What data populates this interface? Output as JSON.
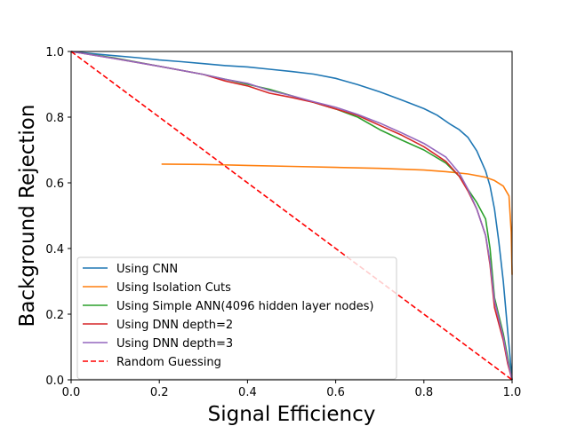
{
  "chart_data": {
    "type": "line",
    "title": "",
    "xlabel": "Signal Efficiency",
    "ylabel": "Background Rejection",
    "xlim": [
      0.0,
      1.0
    ],
    "ylim": [
      0.0,
      1.0
    ],
    "x_ticks": [
      "0.0",
      "0.2",
      "0.4",
      "0.6",
      "0.8",
      "1.0"
    ],
    "y_ticks": [
      "0.0",
      "0.2",
      "0.4",
      "0.6",
      "0.8",
      "1.0"
    ],
    "grid": false,
    "legend_position": "lower-left",
    "series": [
      {
        "name": "Using CNN",
        "color": "#1f77b4",
        "style": "solid",
        "points": [
          [
            0.0,
            1.0
          ],
          [
            0.05,
            0.993
          ],
          [
            0.1,
            0.987
          ],
          [
            0.15,
            0.981
          ],
          [
            0.2,
            0.974
          ],
          [
            0.25,
            0.969
          ],
          [
            0.3,
            0.963
          ],
          [
            0.35,
            0.957
          ],
          [
            0.4,
            0.953
          ],
          [
            0.45,
            0.946
          ],
          [
            0.5,
            0.939
          ],
          [
            0.55,
            0.931
          ],
          [
            0.6,
            0.918
          ],
          [
            0.65,
            0.899
          ],
          [
            0.7,
            0.877
          ],
          [
            0.75,
            0.852
          ],
          [
            0.8,
            0.826
          ],
          [
            0.83,
            0.806
          ],
          [
            0.86,
            0.778
          ],
          [
            0.88,
            0.762
          ],
          [
            0.9,
            0.738
          ],
          [
            0.92,
            0.697
          ],
          [
            0.94,
            0.636
          ],
          [
            0.95,
            0.59
          ],
          [
            0.96,
            0.52
          ],
          [
            0.97,
            0.42
          ],
          [
            0.98,
            0.3
          ],
          [
            0.99,
            0.15
          ],
          [
            1.0,
            0.0
          ]
        ]
      },
      {
        "name": "Using Isolation Cuts",
        "color": "#ff7f0e",
        "style": "solid",
        "points": [
          [
            0.205,
            0.657
          ],
          [
            0.3,
            0.656
          ],
          [
            0.4,
            0.653
          ],
          [
            0.5,
            0.65
          ],
          [
            0.6,
            0.647
          ],
          [
            0.7,
            0.644
          ],
          [
            0.8,
            0.639
          ],
          [
            0.85,
            0.634
          ],
          [
            0.9,
            0.627
          ],
          [
            0.94,
            0.617
          ],
          [
            0.96,
            0.607
          ],
          [
            0.98,
            0.59
          ],
          [
            0.993,
            0.56
          ],
          [
            0.998,
            0.45
          ],
          [
            1.0,
            0.32
          ]
        ]
      },
      {
        "name": "Using Simple ANN(4096 hidden layer nodes)",
        "color": "#2ca02c",
        "style": "solid",
        "points": [
          [
            0.0,
            1.0
          ],
          [
            0.1,
            0.98
          ],
          [
            0.2,
            0.955
          ],
          [
            0.3,
            0.93
          ],
          [
            0.35,
            0.915
          ],
          [
            0.4,
            0.9
          ],
          [
            0.45,
            0.885
          ],
          [
            0.5,
            0.865
          ],
          [
            0.55,
            0.845
          ],
          [
            0.6,
            0.825
          ],
          [
            0.65,
            0.8
          ],
          [
            0.7,
            0.762
          ],
          [
            0.75,
            0.73
          ],
          [
            0.8,
            0.7
          ],
          [
            0.85,
            0.66
          ],
          [
            0.88,
            0.62
          ],
          [
            0.9,
            0.58
          ],
          [
            0.92,
            0.54
          ],
          [
            0.94,
            0.49
          ],
          [
            0.95,
            0.4
          ],
          [
            0.96,
            0.25
          ],
          [
            0.98,
            0.14
          ],
          [
            0.99,
            0.07
          ],
          [
            1.0,
            0.0
          ]
        ]
      },
      {
        "name": "Using DNN depth=2",
        "color": "#d62728",
        "style": "solid",
        "points": [
          [
            0.0,
            1.0
          ],
          [
            0.1,
            0.978
          ],
          [
            0.2,
            0.955
          ],
          [
            0.3,
            0.93
          ],
          [
            0.35,
            0.91
          ],
          [
            0.4,
            0.895
          ],
          [
            0.45,
            0.873
          ],
          [
            0.5,
            0.86
          ],
          [
            0.55,
            0.845
          ],
          [
            0.6,
            0.825
          ],
          [
            0.65,
            0.805
          ],
          [
            0.7,
            0.775
          ],
          [
            0.75,
            0.745
          ],
          [
            0.8,
            0.71
          ],
          [
            0.85,
            0.665
          ],
          [
            0.88,
            0.62
          ],
          [
            0.9,
            0.575
          ],
          [
            0.92,
            0.52
          ],
          [
            0.94,
            0.44
          ],
          [
            0.95,
            0.35
          ],
          [
            0.96,
            0.22
          ],
          [
            0.98,
            0.12
          ],
          [
            0.99,
            0.05
          ],
          [
            1.0,
            0.0
          ]
        ]
      },
      {
        "name": "Using DNN depth=3",
        "color": "#9467bd",
        "style": "solid",
        "points": [
          [
            0.0,
            1.0
          ],
          [
            0.1,
            0.978
          ],
          [
            0.2,
            0.955
          ],
          [
            0.3,
            0.93
          ],
          [
            0.35,
            0.915
          ],
          [
            0.4,
            0.903
          ],
          [
            0.45,
            0.881
          ],
          [
            0.5,
            0.865
          ],
          [
            0.55,
            0.847
          ],
          [
            0.6,
            0.83
          ],
          [
            0.65,
            0.808
          ],
          [
            0.7,
            0.782
          ],
          [
            0.75,
            0.752
          ],
          [
            0.8,
            0.72
          ],
          [
            0.85,
            0.678
          ],
          [
            0.88,
            0.63
          ],
          [
            0.9,
            0.58
          ],
          [
            0.92,
            0.52
          ],
          [
            0.94,
            0.44
          ],
          [
            0.95,
            0.36
          ],
          [
            0.96,
            0.24
          ],
          [
            0.98,
            0.13
          ],
          [
            0.99,
            0.06
          ],
          [
            1.0,
            0.0
          ]
        ]
      },
      {
        "name": "Random Guessing",
        "color": "#ff0000",
        "style": "dashed",
        "points": [
          [
            0.0,
            1.0
          ],
          [
            1.0,
            0.0
          ]
        ]
      }
    ]
  }
}
